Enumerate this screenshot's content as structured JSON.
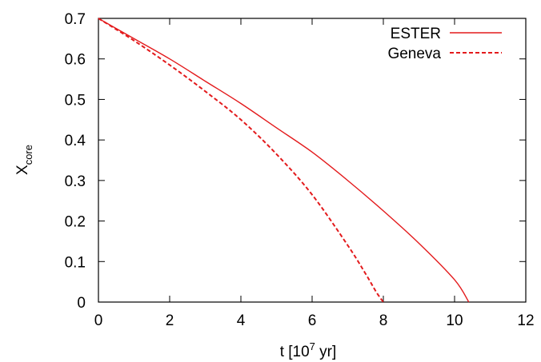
{
  "chart_data": {
    "type": "line",
    "xlabel": "t [10",
    "xlabel_sup": "7",
    "xlabel_tail": " yr]",
    "ylabel": "X",
    "ylabel_sub": "core",
    "xlim": [
      0,
      12
    ],
    "ylim": [
      0,
      0.7
    ],
    "xticks": [
      "0",
      "2",
      "4",
      "6",
      "8",
      "10",
      "12"
    ],
    "yticks": [
      "0",
      "0.1",
      "0.2",
      "0.3",
      "0.4",
      "0.5",
      "0.6",
      "0.7"
    ],
    "grid": false,
    "legend_position": "top-right",
    "series": [
      {
        "name": "ESTER",
        "style": "solid",
        "color": "#e31a1c",
        "x": [
          0,
          1,
          2,
          3,
          4,
          5,
          6,
          7,
          8,
          9,
          10,
          10.4
        ],
        "y": [
          0.7,
          0.65,
          0.6,
          0.545,
          0.49,
          0.43,
          0.37,
          0.3,
          0.225,
          0.145,
          0.055,
          0.0
        ]
      },
      {
        "name": "Geneva",
        "style": "dashed",
        "color": "#e31a1c",
        "x": [
          0,
          1,
          2,
          3,
          4,
          5,
          6,
          7,
          7.5,
          7.8,
          8.0
        ],
        "y": [
          0.7,
          0.645,
          0.585,
          0.52,
          0.45,
          0.365,
          0.265,
          0.14,
          0.07,
          0.025,
          0.0
        ]
      }
    ]
  }
}
